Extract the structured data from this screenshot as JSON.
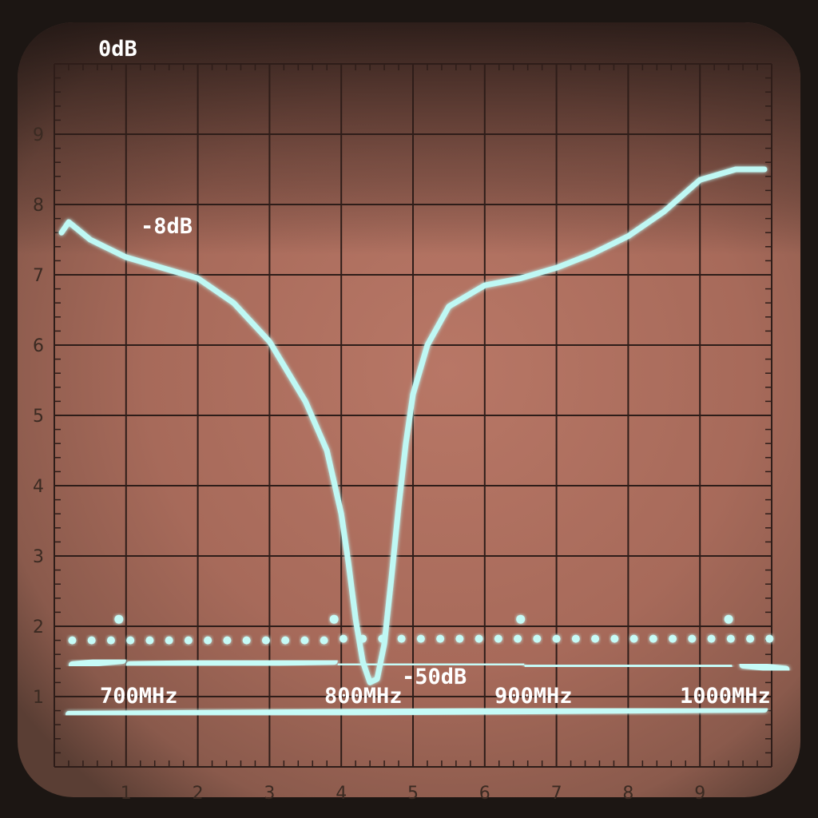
{
  "chart_data": {
    "type": "line",
    "title": "",
    "xlabel": "",
    "ylabel": "",
    "xlim": [
      0,
      10
    ],
    "ylim": [
      0,
      10
    ],
    "x_ticks": [
      "1",
      "2",
      "3",
      "4",
      "5",
      "6",
      "7",
      "8",
      "9"
    ],
    "y_ticks": [
      "1",
      "2",
      "3",
      "4",
      "5",
      "6",
      "7",
      "8",
      "9"
    ],
    "grid": true,
    "annotations": {
      "top": "0dB",
      "peak": "-8dB",
      "notch": "-50dB",
      "freq": [
        "700MHz",
        "800MHz",
        "900MHz",
        "1000MHz"
      ]
    },
    "series": [
      {
        "x": [
          0.1,
          0.2,
          0.5,
          1.0,
          1.5,
          2.0,
          2.5,
          3.0,
          3.5,
          3.8,
          4.0,
          4.1,
          4.2,
          4.3,
          4.4,
          4.5,
          4.6,
          4.7,
          4.8,
          4.9,
          5.0,
          5.2,
          5.5,
          6.0,
          6.5,
          7.0,
          7.5,
          8.0,
          8.5,
          9.0,
          9.5,
          9.9
        ],
        "y": [
          7.6,
          7.75,
          7.5,
          7.25,
          7.1,
          6.95,
          6.6,
          6.05,
          5.2,
          4.5,
          3.6,
          2.9,
          2.1,
          1.5,
          1.2,
          1.25,
          1.75,
          2.7,
          3.7,
          4.6,
          5.3,
          6.0,
          6.55,
          6.85,
          6.95,
          7.1,
          7.3,
          7.55,
          7.9,
          8.35,
          8.5,
          8.5
        ]
      }
    ],
    "reference_levels": [
      0.75,
      1.45,
      1.8
    ]
  }
}
